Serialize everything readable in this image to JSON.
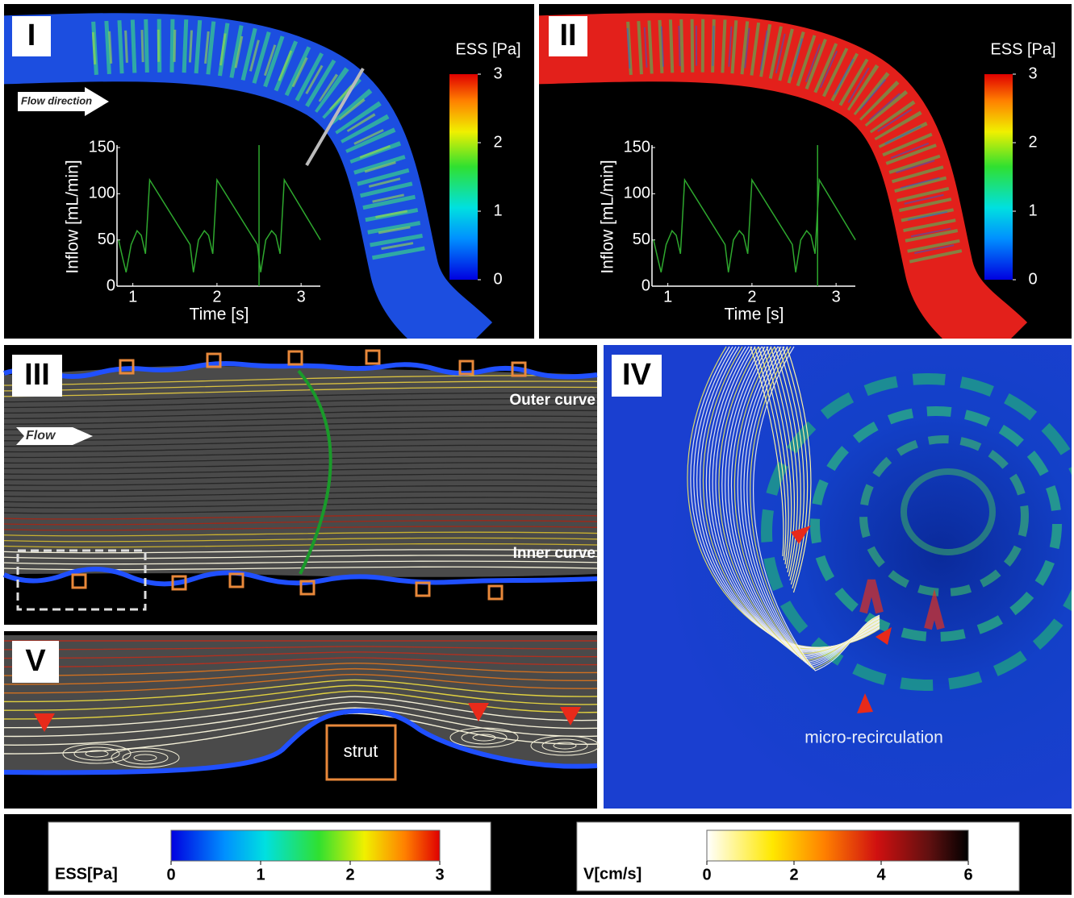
{
  "panels": {
    "I": {
      "label": "I",
      "annotation": "Flow direction",
      "colorbar": {
        "title": "ESS [Pa]",
        "ticks": [
          0,
          1,
          2,
          3
        ]
      },
      "inset": {
        "type": "line",
        "x_label": "Time [s]",
        "y_label": "Inflow [mL/min]",
        "xlim": [
          0.85,
          3.2
        ],
        "ylim": [
          0,
          150
        ],
        "xticks": [
          1,
          2,
          3
        ],
        "yticks": [
          0,
          50,
          100,
          150
        ],
        "x": [
          0.83,
          0.88,
          0.92,
          0.98,
          1.05,
          1.1,
          1.15,
          1.2,
          1.68,
          1.72,
          1.78,
          1.85,
          1.9,
          1.95,
          2.0,
          2.48,
          2.52,
          2.58,
          2.65,
          2.7,
          2.75,
          2.8,
          3.23
        ],
        "values": [
          50,
          30,
          15,
          45,
          60,
          55,
          35,
          115,
          45,
          15,
          50,
          60,
          55,
          35,
          115,
          45,
          15,
          50,
          60,
          55,
          35,
          115,
          50
        ],
        "time_marker": 2.5
      }
    },
    "II": {
      "label": "II",
      "colorbar": {
        "title": "ESS [Pa]",
        "ticks": [
          0,
          1,
          2,
          3
        ]
      },
      "inset": {
        "type": "line",
        "x_label": "Time [s]",
        "y_label": "Inflow [mL/min]",
        "xlim": [
          0.85,
          3.2
        ],
        "ylim": [
          0,
          150
        ],
        "xticks": [
          1,
          2,
          3
        ],
        "yticks": [
          0,
          50,
          100,
          150
        ],
        "x": [
          0.83,
          0.88,
          0.92,
          0.98,
          1.05,
          1.1,
          1.15,
          1.2,
          1.68,
          1.72,
          1.78,
          1.85,
          1.9,
          1.95,
          2.0,
          2.48,
          2.52,
          2.58,
          2.65,
          2.7,
          2.75,
          2.8,
          3.23
        ],
        "values": [
          50,
          30,
          15,
          45,
          60,
          55,
          35,
          115,
          45,
          15,
          50,
          60,
          55,
          35,
          115,
          45,
          15,
          50,
          60,
          55,
          35,
          115,
          50
        ],
        "time_marker": 2.78
      }
    },
    "III": {
      "label": "III",
      "annotations": [
        "Outer curve",
        "Inner curve",
        "Flow"
      ]
    },
    "IV": {
      "label": "IV",
      "annotation": "micro-recirculation"
    },
    "V": {
      "label": "V",
      "annotation": "strut"
    }
  },
  "legends": [
    {
      "title": "ESS[Pa]",
      "ticks": [
        0,
        1,
        2,
        3
      ]
    },
    {
      "title": "V[cm/s]",
      "ticks": [
        0,
        2,
        4,
        6
      ]
    }
  ]
}
